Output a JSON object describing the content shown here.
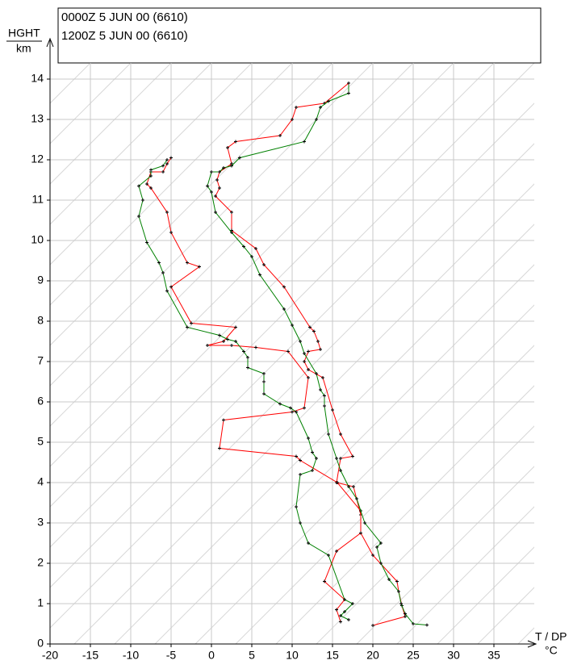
{
  "chart_data": {
    "type": "line",
    "y_label_top": "HGHT",
    "y_label_bottom": "km",
    "x_label": "T / DP",
    "x_unit": "°C",
    "xlim": [
      -20,
      40
    ],
    "ylim": [
      0,
      14.4
    ],
    "xticks": [
      -20,
      -15,
      -10,
      -5,
      0,
      5,
      10,
      15,
      20,
      25,
      30,
      35
    ],
    "yticks": [
      0,
      1,
      2,
      3,
      4,
      5,
      6,
      7,
      8,
      9,
      10,
      11,
      12,
      13,
      14
    ],
    "grid": true,
    "series": [
      {
        "name": "0000Z  5 JUN 00 (6610)",
        "color": "#ff0000",
        "temperature": {
          "x": [
            20,
            24,
            23.6,
            23.2,
            23,
            20,
            18.5,
            18.5,
            17.6,
            15.5,
            16,
            17.5,
            16,
            15,
            13.8,
            12,
            11.5,
            12,
            13.5,
            13.2,
            12.7,
            12.2,
            9,
            6.5,
            5.5,
            2.5,
            2.5,
            0.5,
            1,
            0.7,
            1,
            2.5,
            2,
            3,
            8.5,
            10,
            10.5,
            14,
            17
          ],
          "y": [
            0.46,
            0.68,
            0.95,
            1.3,
            1.55,
            2.2,
            2.75,
            3.2,
            3.9,
            4.0,
            4.6,
            4.65,
            5.2,
            5.8,
            6.6,
            6.8,
            7.0,
            7.25,
            7.3,
            7.5,
            7.75,
            7.85,
            8.85,
            9.4,
            9.8,
            10.25,
            10.7,
            11.1,
            11.3,
            11.5,
            11.7,
            11.9,
            12.3,
            12.45,
            12.6,
            13.0,
            13.3,
            13.4,
            13.9
          ]
        },
        "dewpoint": {
          "x": [
            16,
            15.5,
            16.5,
            14,
            15.5,
            18.5,
            18.5,
            15.6,
            11,
            10.5,
            1,
            1.5,
            10,
            11.5,
            12,
            9.5,
            5.5,
            2.5,
            -0.5,
            1.5,
            3,
            -2.5,
            -5,
            -1.5,
            -3,
            -5,
            -5.5,
            -7.5,
            -8,
            -7.5,
            -6,
            -5.5,
            -5
          ],
          "y": [
            0.55,
            0.85,
            1.1,
            1.55,
            2.3,
            2.75,
            3.3,
            4.0,
            4.55,
            4.65,
            4.85,
            5.55,
            5.75,
            5.85,
            6.6,
            7.25,
            7.35,
            7.4,
            7.4,
            7.5,
            7.85,
            7.95,
            8.85,
            9.35,
            9.45,
            10.2,
            10.7,
            11.3,
            11.4,
            11.7,
            11.7,
            11.9,
            12.05
          ]
        }
      },
      {
        "name": "1200Z  5 JUN 00 (6610)",
        "color": "#008000",
        "temperature": {
          "x": [
            26.7,
            25,
            24,
            23.5,
            23.2,
            22,
            21,
            20.5,
            21,
            19,
            18,
            17,
            16,
            15.5,
            14.5,
            14,
            14,
            13.5,
            13,
            11.5,
            11,
            10,
            9,
            6,
            5,
            4,
            2.5,
            0.5,
            0,
            -0.5,
            0,
            1,
            1.5,
            2.5,
            3.5,
            11.5,
            13,
            13.5,
            14.5,
            17,
            17
          ],
          "y": [
            0.47,
            0.5,
            0.75,
            1.0,
            1.3,
            1.6,
            2.0,
            2.4,
            2.5,
            3.0,
            3.6,
            3.9,
            4.3,
            4.6,
            5.2,
            5.9,
            6.15,
            6.3,
            6.7,
            7.2,
            7.5,
            7.9,
            8.3,
            9.15,
            9.6,
            9.85,
            10.2,
            10.7,
            11.2,
            11.35,
            11.7,
            11.7,
            11.8,
            11.85,
            12.05,
            12.45,
            13.0,
            13.3,
            13.45,
            13.65,
            13.9
          ]
        },
        "dewpoint": {
          "x": [
            17,
            16,
            16.5,
            17.5,
            16.5,
            14.5,
            12,
            11,
            10.5,
            11,
            12.5,
            13,
            12.5,
            12,
            10.5,
            9.8,
            8.5,
            6.5,
            6.5,
            6.5,
            4.5,
            4.5,
            4,
            3,
            2,
            1,
            -3,
            -5.5,
            -6,
            -6.5,
            -8,
            -9,
            -8.5,
            -9,
            -7.5,
            -7.5,
            -6,
            -5.5
          ],
          "y": [
            0.6,
            0.7,
            0.8,
            1.0,
            1.1,
            2.2,
            2.5,
            3.0,
            3.4,
            4.2,
            4.3,
            4.6,
            4.75,
            5.1,
            5.75,
            5.85,
            5.95,
            6.2,
            6.5,
            6.7,
            6.85,
            7.1,
            7.25,
            7.5,
            7.55,
            7.65,
            7.85,
            8.75,
            9.2,
            9.45,
            9.95,
            10.6,
            11.0,
            11.35,
            11.6,
            11.75,
            11.85,
            12.0
          ]
        }
      }
    ]
  }
}
